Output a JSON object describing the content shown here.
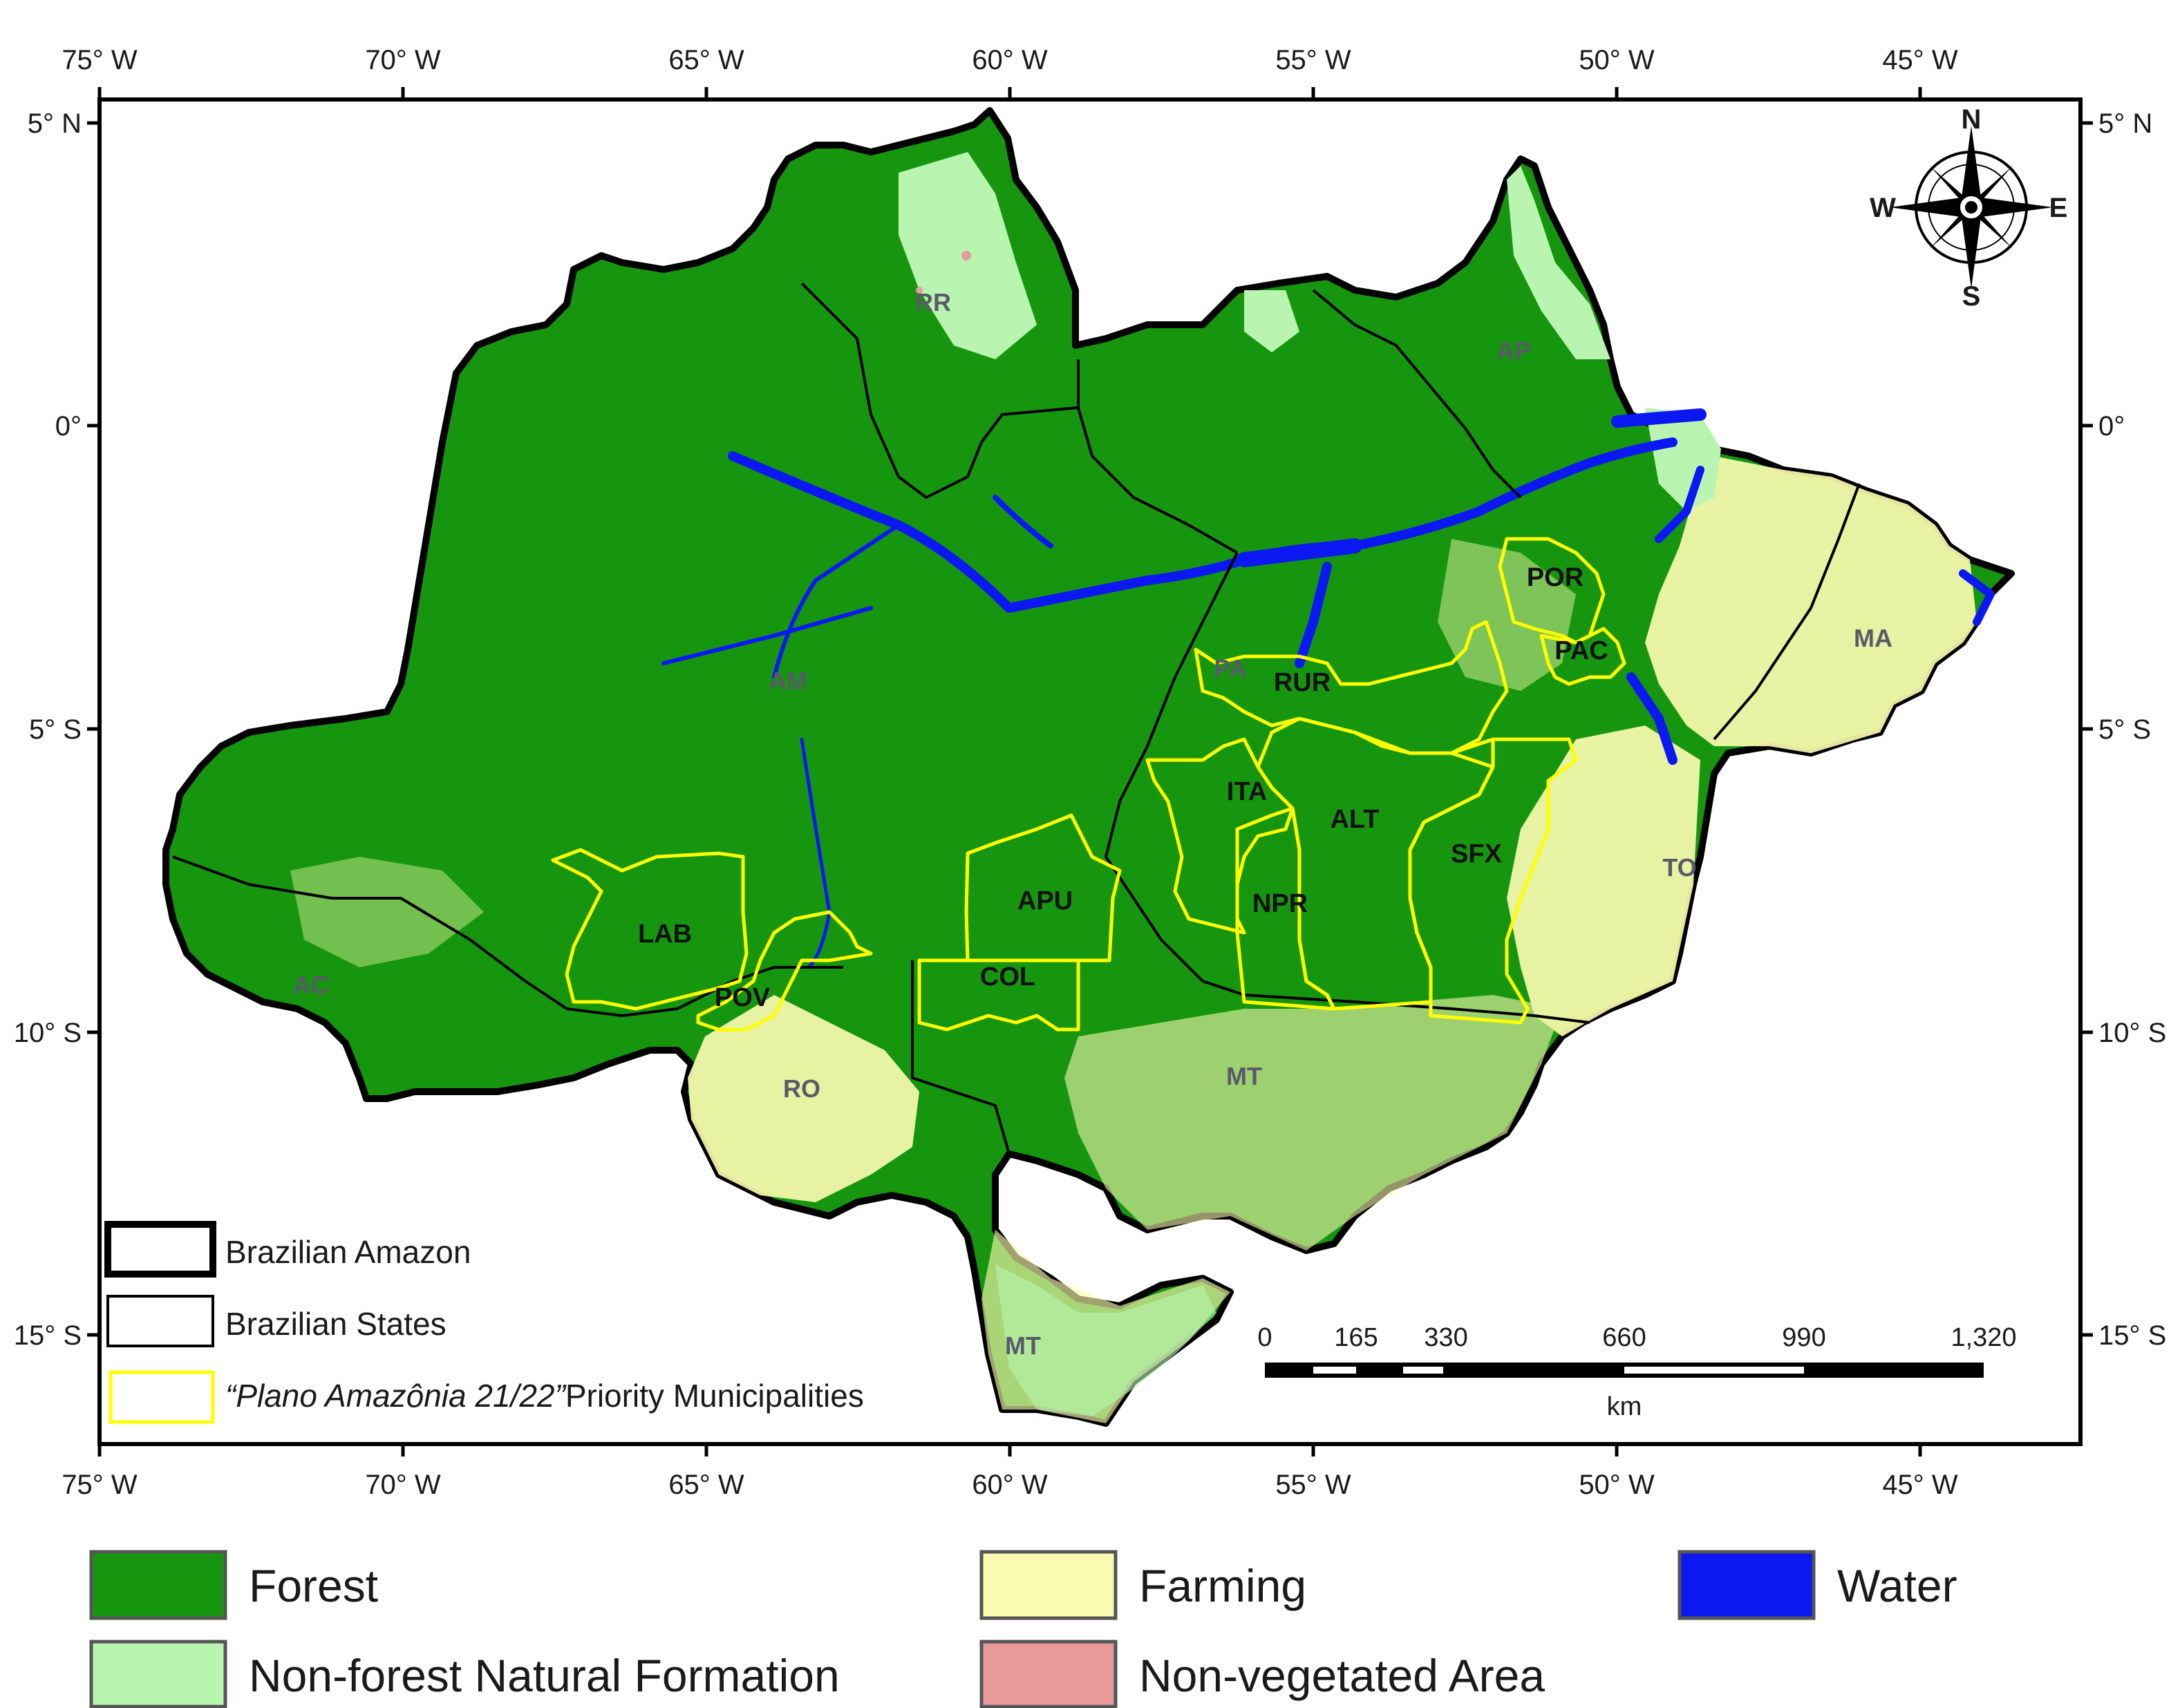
{
  "colors": {
    "forest": "#16960f",
    "non_forest": "#b9f5b0",
    "farming": "#fbfbb0",
    "non_vegetated": "#e89a9a",
    "water": "#0b18f2",
    "priority_outline": "#ffff00"
  },
  "axes": {
    "longitude_ticks": [
      "75° W",
      "70° W",
      "65° W",
      "60° W",
      "55° W",
      "50° W",
      "45° W"
    ],
    "latitude_ticks": [
      "5° N",
      "0°",
      "5° S",
      "10° S",
      "15° S"
    ]
  },
  "states": [
    {
      "code": "RR"
    },
    {
      "code": "AP"
    },
    {
      "code": "AM"
    },
    {
      "code": "PA"
    },
    {
      "code": "MA"
    },
    {
      "code": "TO"
    },
    {
      "code": "AC"
    },
    {
      "code": "RO"
    },
    {
      "code": "MT"
    },
    {
      "code": "MT2"
    }
  ],
  "state_labels": {
    "RR": "RR",
    "AP": "AP",
    "AM": "AM",
    "PA": "PA",
    "MA": "MA",
    "TO": "TO",
    "AC": "AC",
    "RO": "RO",
    "MT": "MT",
    "MT2": "MT"
  },
  "municipalities": {
    "POR": "POR",
    "PAC": "PAC",
    "RUR": "RUR",
    "ITA": "ITA",
    "ALT": "ALT",
    "SFX": "SFX",
    "NPR": "NPR",
    "APU": "APU",
    "LAB": "LAB",
    "POV": "POV",
    "COL": "COL"
  },
  "compass": {
    "n": "N",
    "s": "S",
    "e": "E",
    "w": "W"
  },
  "scale_bar": {
    "ticks": [
      "0",
      "165",
      "330",
      "660",
      "990",
      "1,320"
    ],
    "unit": "km"
  },
  "boundary_legend": {
    "amazon": "Brazilian Amazon",
    "states": "Brazilian States",
    "priority_quote": "“Plano Amazônia 21/22”",
    "priority_rest": "Priority Municipalities"
  },
  "land_cover_legend": {
    "forest": "Forest",
    "farming": "Farming",
    "water": "Water",
    "non_forest": "Non-forest Natural Formation",
    "non_vegetated": "Non-vegetated Area"
  }
}
